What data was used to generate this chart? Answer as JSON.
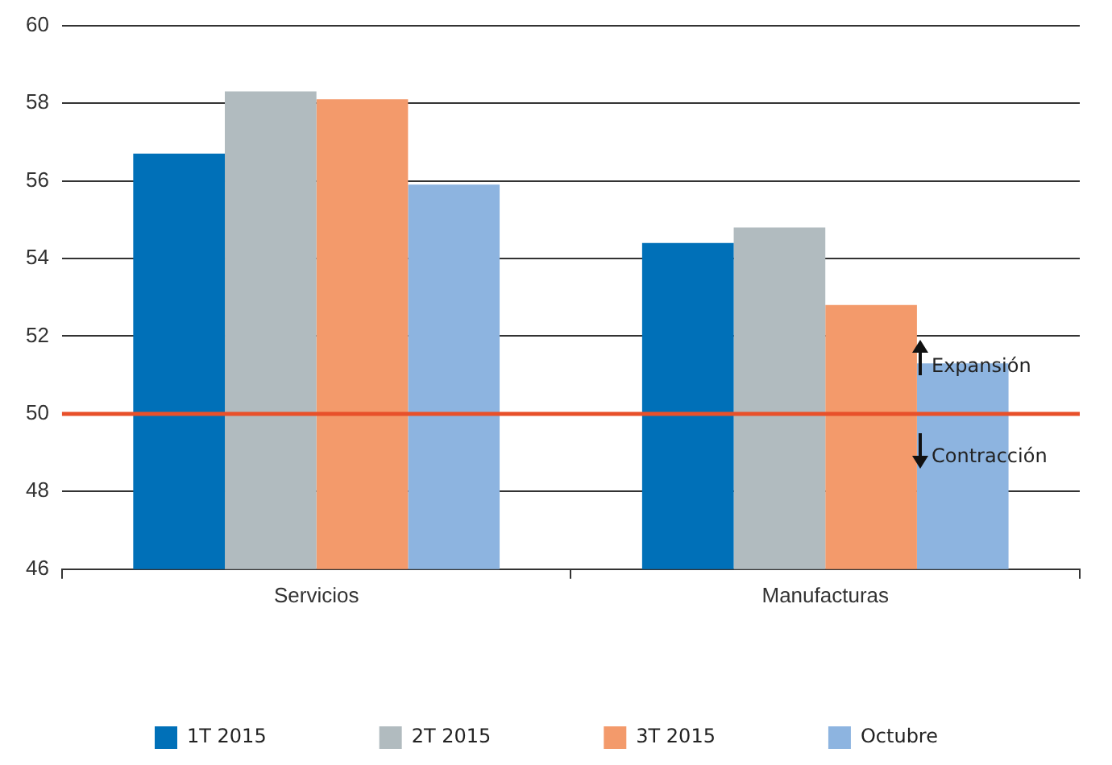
{
  "chart_data": {
    "type": "bar",
    "categories": [
      "Servicios",
      "Manufacturas"
    ],
    "series": [
      {
        "name": "1T 2015",
        "color": "#0070b8",
        "values": [
          56.7,
          54.4
        ]
      },
      {
        "name": "2T 2015",
        "color": "#b1bbbf",
        "values": [
          58.3,
          54.8
        ]
      },
      {
        "name": "3T 2015",
        "color": "#f39a6b",
        "values": [
          58.1,
          52.8
        ]
      },
      {
        "name": "Octubre",
        "color": "#8db4e0",
        "values": [
          55.9,
          51.3
        ]
      }
    ],
    "ylim": [
      46,
      60
    ],
    "yticks": [
      46,
      48,
      50,
      52,
      54,
      56,
      58,
      60
    ],
    "grid": "y",
    "legend": "bottom",
    "ref_lines": [
      {
        "axis": "y",
        "value": 50,
        "color": "#e8502a"
      }
    ],
    "annotations": [
      "Expansión",
      "Contracción"
    ]
  }
}
